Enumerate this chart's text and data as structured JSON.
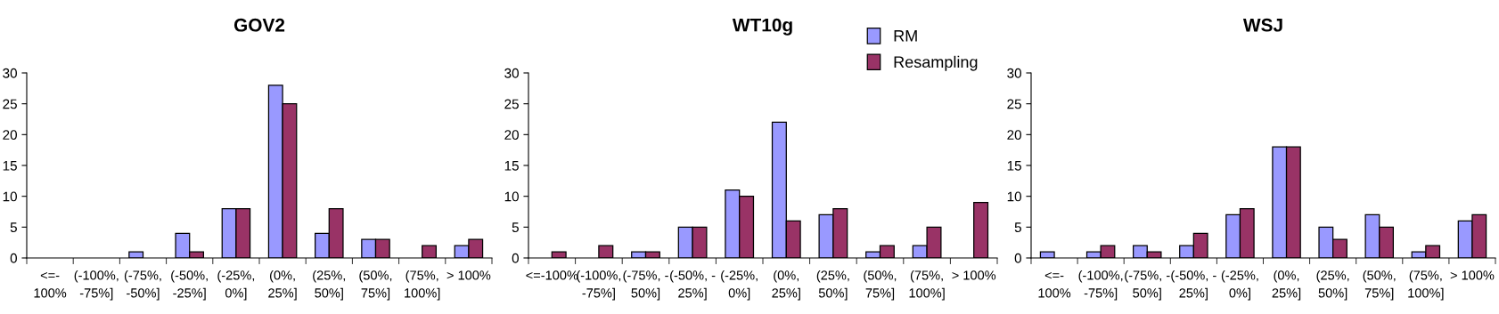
{
  "chart_data": [
    {
      "type": "bar",
      "title": "GOV2",
      "categories": [
        "<=-\n100%",
        "(-100%,\n-75%]",
        "(-75%,\n-50%]",
        "(-50%,\n-25%]",
        "(-25%,\n0%]",
        "(0%,\n25%]",
        "(25%,\n50%]",
        "(50%,\n75%]",
        "(75%,\n100%]",
        "> 100%"
      ],
      "series": [
        {
          "color": "#9999ff",
          "values": [
            null,
            null,
            1,
            4,
            8,
            28,
            4,
            3,
            null,
            2
          ]
        },
        {
          "color": "#993366",
          "values": [
            null,
            null,
            null,
            1,
            8,
            25,
            8,
            3,
            2,
            3
          ]
        }
      ],
      "ylim": [
        0,
        30
      ],
      "yticks": [
        0,
        5,
        10,
        15,
        20,
        25,
        30
      ],
      "grid": false,
      "legend": false
    },
    {
      "type": "bar",
      "title": "WT10g",
      "categories": [
        "<=-100%",
        "(-100%,\n-75%]",
        "(-75%, -\n50%]",
        "(-50%, -\n25%]",
        "(-25%,\n0%]",
        "(0%,\n25%]",
        "(25%,\n50%]",
        "(50%,\n75%]",
        "(75%,\n100%]",
        "> 100%"
      ],
      "series": [
        {
          "name": "RM",
          "color": "#9999ff",
          "values": [
            null,
            null,
            1,
            5,
            11,
            22,
            7,
            1,
            2,
            null
          ]
        },
        {
          "name": "Resampling",
          "color": "#993366",
          "values": [
            1,
            2,
            1,
            5,
            10,
            6,
            8,
            2,
            5,
            9
          ]
        }
      ],
      "ylim": [
        0,
        30
      ],
      "yticks": [
        0,
        5,
        10,
        15,
        20,
        25,
        30
      ],
      "grid": false,
      "legend": "top right"
    },
    {
      "type": "bar",
      "title": "WSJ",
      "categories": [
        "<=-\n100%",
        "(-100%,\n-75%]",
        "(-75%, -\n50%]",
        "(-50%, -\n25%]",
        "(-25%,\n0%]",
        "(0%,\n25%]",
        "(25%,\n50%]",
        "(50%,\n75%]",
        "(75%,\n100%]",
        "> 100%"
      ],
      "series": [
        {
          "color": "#9999ff",
          "values": [
            1,
            1,
            2,
            2,
            7,
            18,
            5,
            7,
            1,
            6
          ]
        },
        {
          "color": "#993366",
          "values": [
            null,
            2,
            1,
            4,
            8,
            18,
            3,
            5,
            2,
            7
          ]
        }
      ],
      "ylim": [
        0,
        30
      ],
      "yticks": [
        0,
        5,
        10,
        15,
        20,
        25,
        30
      ],
      "grid": false,
      "legend": false
    }
  ]
}
